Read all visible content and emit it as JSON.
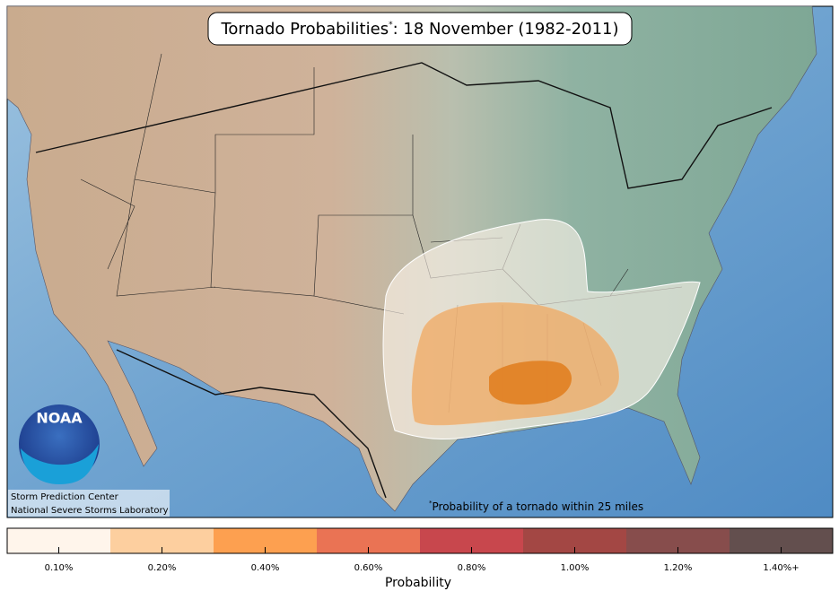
{
  "header": {
    "title": "Tornado Probabilities",
    "title_marker": "*",
    "title_date": ": 18 November (1982-2011)"
  },
  "credits": {
    "logo": "NOAA",
    "line1": "Storm Prediction Center",
    "line2": "National Severe Storms Laboratory"
  },
  "footnote": {
    "marker": "*",
    "text": "Probability of a tornado within 25 miles"
  },
  "legend": {
    "title": "Probability",
    "items": [
      {
        "label": "0.10%",
        "color": "#fff5eb"
      },
      {
        "label": "0.20%",
        "color": "#fdcf9f"
      },
      {
        "label": "0.40%",
        "color": "#fda050"
      },
      {
        "label": "0.60%",
        "color": "#ea7354"
      },
      {
        "label": "0.80%",
        "color": "#c8474d"
      },
      {
        "label": "1.00%",
        "color": "#a34744"
      },
      {
        "label": "1.20%",
        "color": "#874d4c"
      },
      {
        "label": "1.40%+",
        "color": "#634f4e"
      }
    ]
  }
}
